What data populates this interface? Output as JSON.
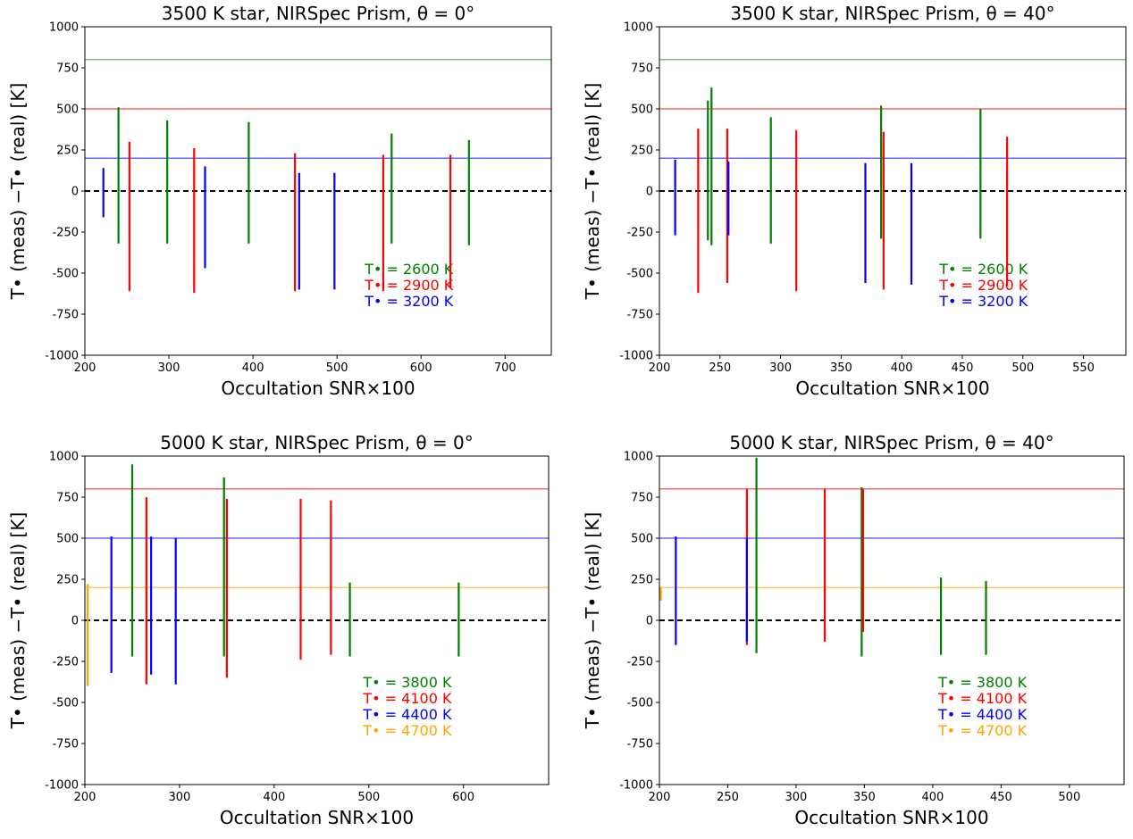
{
  "chart_data": [
    {
      "type": "segment",
      "title": "3500 K star, NIRSpec Prism, θ = 0°",
      "xlabel": "Occultation SNR×100",
      "ylabel": "T• (meas) −T• (real) [K]",
      "xlim": [
        200,
        755
      ],
      "ylim": [
        -1000,
        1000
      ],
      "xticks": [
        200,
        300,
        400,
        500,
        600,
        700
      ],
      "yticks": [
        -1000,
        -750,
        -500,
        -250,
        0,
        250,
        500,
        750,
        1000
      ],
      "hlines": [
        {
          "value": 800,
          "color": "#2ca02c"
        },
        {
          "value": 500,
          "color": "#ff0000"
        },
        {
          "value": 200,
          "color": "#0000ff"
        }
      ],
      "series": [
        {
          "name": "T• = 2600 K",
          "color": "#008000",
          "x": [
            240,
            298,
            395,
            565,
            657
          ],
          "low": [
            -320,
            -320,
            -320,
            -320,
            -330
          ],
          "high": [
            510,
            430,
            420,
            350,
            310
          ]
        },
        {
          "name": "T• = 2900 K",
          "color": "#ff0000",
          "x": [
            253,
            330,
            450,
            555,
            635
          ],
          "low": [
            -610,
            -620,
            -610,
            -610,
            -590
          ],
          "high": [
            300,
            260,
            230,
            220,
            220
          ]
        },
        {
          "name": "T• = 3200 K",
          "color": "#0000ff",
          "x": [
            222,
            343,
            455,
            497
          ],
          "low": [
            -160,
            -470,
            -600,
            -600
          ],
          "high": [
            140,
            150,
            110,
            110
          ]
        }
      ]
    },
    {
      "type": "segment",
      "title": "3500 K star, NIRSpec Prism, θ = 40°",
      "xlabel": "Occultation SNR×100",
      "ylabel": "T• (meas) −T• (real) [K]",
      "xlim": [
        200,
        585
      ],
      "ylim": [
        -1000,
        1000
      ],
      "xticks": [
        200,
        250,
        300,
        350,
        400,
        450,
        500,
        550
      ],
      "yticks": [
        -1000,
        -750,
        -500,
        -250,
        0,
        250,
        500,
        750,
        1000
      ],
      "hlines": [
        {
          "value": 800,
          "color": "#2ca02c"
        },
        {
          "value": 500,
          "color": "#ff0000"
        },
        {
          "value": 200,
          "color": "#0000ff"
        }
      ],
      "series": [
        {
          "name": "T• = 2600 K",
          "color": "#008000",
          "x": [
            240,
            243,
            292,
            383,
            465
          ],
          "low": [
            -300,
            -330,
            -320,
            -290,
            -290
          ],
          "high": [
            550,
            630,
            450,
            520,
            500
          ]
        },
        {
          "name": "T• = 2900 K",
          "color": "#ff0000",
          "x": [
            232,
            256,
            313,
            385,
            487
          ],
          "low": [
            -620,
            -560,
            -610,
            -600,
            -580
          ],
          "high": [
            380,
            380,
            370,
            360,
            330
          ]
        },
        {
          "name": "T• = 3200 K",
          "color": "#0000ff",
          "x": [
            213,
            257,
            370,
            408
          ],
          "low": [
            -270,
            -270,
            -560,
            -570
          ],
          "high": [
            190,
            180,
            170,
            170
          ]
        }
      ]
    },
    {
      "type": "segment",
      "title": "5000 K star, NIRSpec Prism, θ = 0°",
      "xlabel": "Occultation SNR×100",
      "ylabel": "T• (meas) −T• (real) [K]",
      "xlim": [
        200,
        690
      ],
      "ylim": [
        -1000,
        1000
      ],
      "xticks": [
        200,
        300,
        400,
        500,
        600
      ],
      "yticks": [
        -1000,
        -750,
        -500,
        -250,
        0,
        250,
        500,
        750,
        1000
      ],
      "hlines": [
        {
          "value": 800,
          "color": "#ff0000"
        },
        {
          "value": 500,
          "color": "#0000ff"
        },
        {
          "value": 200,
          "color": "#ffa500"
        }
      ],
      "series": [
        {
          "name": "T• = 3800 K",
          "color": "#008000",
          "x": [
            250,
            347,
            480,
            595
          ],
          "low": [
            -220,
            -220,
            -220,
            -220
          ],
          "high": [
            950,
            870,
            230,
            230
          ]
        },
        {
          "name": "T• = 4100 K",
          "color": "#ff0000",
          "x": [
            265,
            350,
            428,
            460
          ],
          "low": [
            -390,
            -350,
            -240,
            -210
          ],
          "high": [
            750,
            740,
            740,
            730
          ]
        },
        {
          "name": "T• = 4400 K",
          "color": "#0000ff",
          "x": [
            228,
            270,
            296
          ],
          "low": [
            -320,
            -330,
            -390
          ],
          "high": [
            510,
            510,
            500
          ]
        },
        {
          "name": "T• = 4700 K",
          "color": "#ffa500",
          "x": [
            203
          ],
          "low": [
            -400
          ],
          "high": [
            220
          ]
        }
      ]
    },
    {
      "type": "segment",
      "title": "5000 K star, NIRSpec Prism, θ = 40°",
      "xlabel": "Occultation SNR×100",
      "ylabel": "T• (meas) −T• (real) [K]",
      "xlim": [
        200,
        540
      ],
      "ylim": [
        -1000,
        1000
      ],
      "xticks": [
        200,
        250,
        300,
        350,
        400,
        450,
        500
      ],
      "yticks": [
        -1000,
        -750,
        -500,
        -250,
        0,
        250,
        500,
        750,
        1000
      ],
      "hlines": [
        {
          "value": 800,
          "color": "#ff0000"
        },
        {
          "value": 500,
          "color": "#0000ff"
        },
        {
          "value": 200,
          "color": "#ffa500"
        }
      ],
      "series": [
        {
          "name": "T• = 3800 K",
          "color": "#008000",
          "x": [
            271,
            348,
            406,
            439
          ],
          "low": [
            -200,
            -220,
            -210,
            -210
          ],
          "high": [
            990,
            810,
            260,
            240
          ]
        },
        {
          "name": "T• = 4100 K",
          "color": "#ff0000",
          "x": [
            264,
            321,
            349
          ],
          "low": [
            -150,
            -130,
            -70
          ],
          "high": [
            800,
            800,
            800
          ]
        },
        {
          "name": "T• = 4400 K",
          "color": "#0000ff",
          "x": [
            212,
            264
          ],
          "low": [
            -150,
            -130
          ],
          "high": [
            510,
            500
          ]
        },
        {
          "name": "T• = 4700 K",
          "color": "#ffa500",
          "x": [
            201
          ],
          "low": [
            120
          ],
          "high": [
            200
          ]
        }
      ]
    }
  ]
}
